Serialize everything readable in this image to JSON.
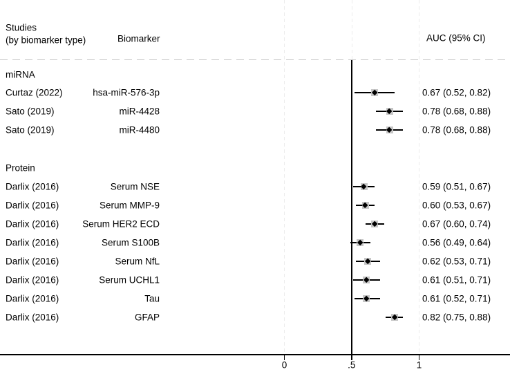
{
  "header": {
    "studies_line1": "Studies",
    "studies_line2": "(by biomarker type)",
    "biomarker_label": "Biomarker",
    "auc_label": "AUC (95% CI)"
  },
  "colors": {
    "text": "#000000",
    "line": "#000000",
    "gridline": "#ebebeb",
    "separator": "#c4c4c4",
    "weight_box": "#c6c6c6",
    "background": "#ffffff"
  },
  "chart_data": {
    "type": "forest",
    "title": "",
    "xlabel": "",
    "ylabel": "",
    "x_ticks": [
      ".0",
      ".5",
      "1"
    ],
    "x_tick_labels": [
      "0",
      ".5",
      "1"
    ],
    "x_tick_values": [
      0,
      0.5,
      1
    ],
    "reference_line": 0.5,
    "grid": "vertical-dashed",
    "legend_position": "none",
    "value_column_header": "AUC (95% CI)",
    "groups": [
      {
        "label": "miRNA",
        "rows": [
          {
            "study": "Curtaz (2022)",
            "biomarker": "hsa-miR-576-3p",
            "auc": 0.67,
            "ci_low": 0.52,
            "ci_high": 0.82,
            "auc_label": "0.67 (0.52, 0.82)"
          },
          {
            "study": "Sato (2019)",
            "biomarker": "miR-4428",
            "auc": 0.78,
            "ci_low": 0.68,
            "ci_high": 0.88,
            "auc_label": "0.78 (0.68, 0.88)"
          },
          {
            "study": "Sato (2019)",
            "biomarker": "miR-4480",
            "auc": 0.78,
            "ci_low": 0.68,
            "ci_high": 0.88,
            "auc_label": "0.78 (0.68, 0.88)"
          }
        ]
      },
      {
        "label": "Protein",
        "rows": [
          {
            "study": "Darlix (2016)",
            "biomarker": "Serum NSE",
            "auc": 0.59,
            "ci_low": 0.51,
            "ci_high": 0.67,
            "auc_label": "0.59 (0.51, 0.67)"
          },
          {
            "study": "Darlix (2016)",
            "biomarker": "Serum MMP-9",
            "auc": 0.6,
            "ci_low": 0.53,
            "ci_high": 0.67,
            "auc_label": "0.60 (0.53, 0.67)"
          },
          {
            "study": "Darlix (2016)",
            "biomarker": "Serum HER2 ECD",
            "auc": 0.67,
            "ci_low": 0.6,
            "ci_high": 0.74,
            "auc_label": "0.67 (0.60, 0.74)"
          },
          {
            "study": "Darlix (2016)",
            "biomarker": "Serum S100B",
            "auc": 0.56,
            "ci_low": 0.49,
            "ci_high": 0.64,
            "auc_label": "0.56 (0.49, 0.64)"
          },
          {
            "study": "Darlix (2016)",
            "biomarker": "Serum NfL",
            "auc": 0.62,
            "ci_low": 0.53,
            "ci_high": 0.71,
            "auc_label": "0.62 (0.53, 0.71)"
          },
          {
            "study": "Darlix (2016)",
            "biomarker": "Serum UCHL1",
            "auc": 0.61,
            "ci_low": 0.51,
            "ci_high": 0.71,
            "auc_label": "0.61 (0.51, 0.71)"
          },
          {
            "study": "Darlix (2016)",
            "biomarker": "Tau",
            "auc": 0.61,
            "ci_low": 0.52,
            "ci_high": 0.71,
            "auc_label": "0.61 (0.52, 0.71)"
          },
          {
            "study": "Darlix (2016)",
            "biomarker": "GFAP",
            "auc": 0.82,
            "ci_low": 0.75,
            "ci_high": 0.88,
            "auc_label": "0.82 (0.75, 0.88)"
          }
        ]
      }
    ]
  }
}
